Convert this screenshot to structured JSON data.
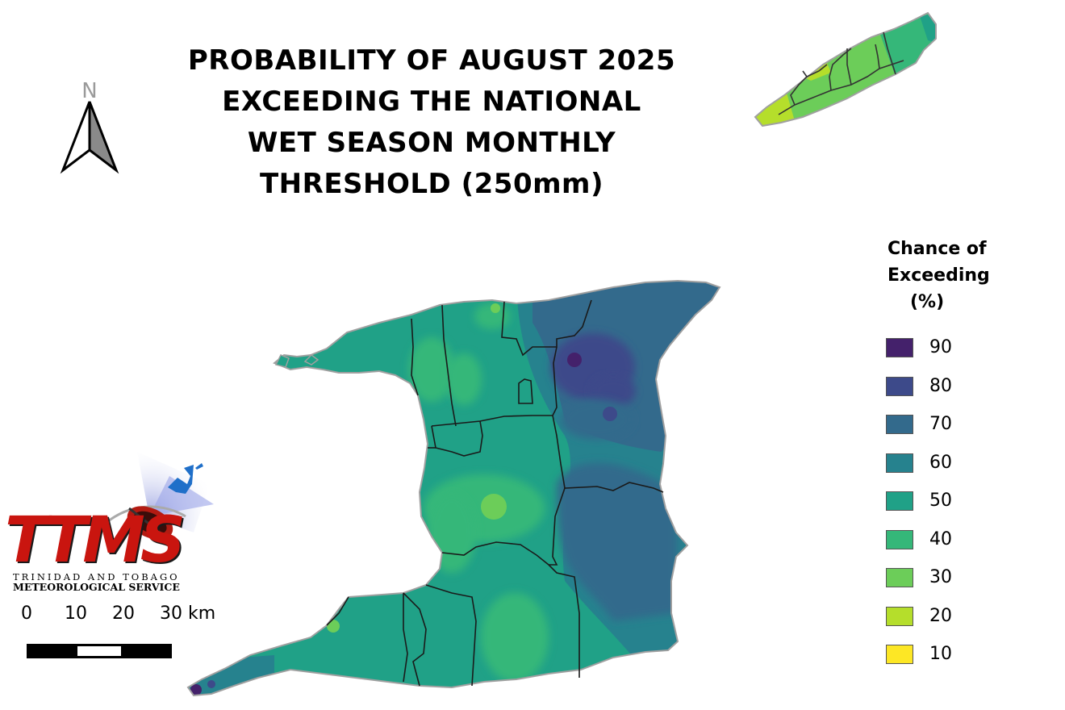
{
  "title_lines": [
    "PROBABILITY OF AUGUST 2025",
    "EXCEEDING THE NATIONAL",
    "WET SEASON MONTHLY",
    "THRESHOLD (250mm)"
  ],
  "north_arrow": {
    "label": "N",
    "icon": "north-arrow-icon"
  },
  "legend": {
    "title_lines": [
      "Chance of",
      "Exceeding",
      "(%)"
    ],
    "items": [
      {
        "value": "90",
        "color": "#44216b"
      },
      {
        "value": "80",
        "color": "#3d4a8a"
      },
      {
        "value": "70",
        "color": "#336a8c"
      },
      {
        "value": "60",
        "color": "#26828e"
      },
      {
        "value": "50",
        "color": "#20a187"
      },
      {
        "value": "40",
        "color": "#35b779"
      },
      {
        "value": "30",
        "color": "#6ccd59"
      },
      {
        "value": "20",
        "color": "#b5de2b"
      },
      {
        "value": "10",
        "color": "#fde725"
      }
    ]
  },
  "logo": {
    "acronym": "TTMS",
    "line1": "TRINIDAD AND TOBAGO",
    "line2": "METEOROLOGICAL SERVICE"
  },
  "scale_bar": {
    "labels": [
      "0",
      "10",
      "20",
      "30 km"
    ]
  }
}
